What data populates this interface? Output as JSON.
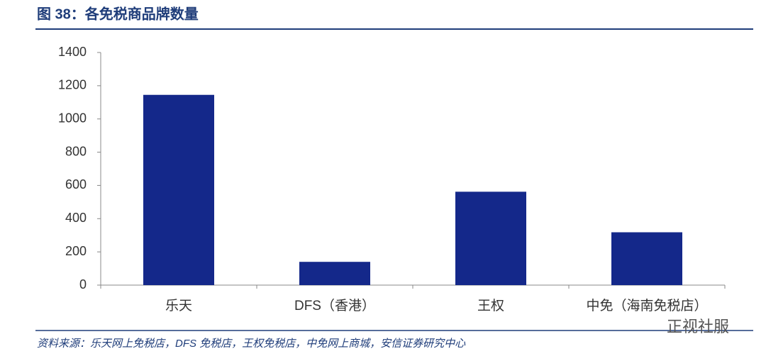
{
  "chart_data": {
    "type": "bar",
    "title": "图 38：各免税商品牌数量",
    "categories": [
      "乐天",
      "DFS（香港）",
      "王权",
      "中免（海南免税店）"
    ],
    "values": [
      1145,
      140,
      562,
      318
    ],
    "color": "#14288a",
    "ylim": [
      0,
      1400
    ],
    "yticks": [
      0,
      200,
      400,
      600,
      800,
      1000,
      1200,
      1400
    ],
    "grid": false,
    "source": "资料来源：乐天网上免税店，DFS 免税店，王权免税店，中免网上商城，安信证券研究中心",
    "watermark": "正视社服"
  }
}
